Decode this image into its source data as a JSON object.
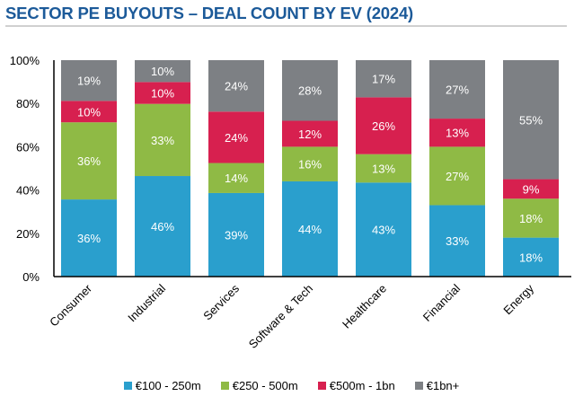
{
  "chart_data": {
    "type": "bar",
    "stacked": true,
    "title": "SECTOR PE BUYOUTS – DEAL COUNT BY EV (2024)",
    "xlabel": "",
    "ylabel": "",
    "ylim": [
      0,
      100
    ],
    "yticks": [
      "0%",
      "20%",
      "40%",
      "60%",
      "80%",
      "100%"
    ],
    "ytick_values": [
      0,
      20,
      40,
      60,
      80,
      100
    ],
    "grid": false,
    "legend_position": "bottom",
    "categories": [
      "Consumer",
      "Industrial",
      "Services",
      "Software & Tech",
      "Healthcare",
      "Financial",
      "Energy"
    ],
    "series": [
      {
        "name": "€100 - 250m",
        "color": "#2a9fcd",
        "values": [
          36,
          46,
          39,
          44,
          43,
          33,
          18
        ]
      },
      {
        "name": "€250 - 500m",
        "color": "#8fba45",
        "values": [
          36,
          33,
          14,
          16,
          13,
          27,
          18
        ]
      },
      {
        "name": "€500m - 1bn",
        "color": "#d7204f",
        "values": [
          10,
          10,
          24,
          12,
          26,
          13,
          9
        ]
      },
      {
        "name": "€1bn+",
        "color": "#7d8084",
        "values": [
          19,
          10,
          24,
          28,
          17,
          27,
          55
        ]
      }
    ],
    "data_label_suffix": "%"
  }
}
